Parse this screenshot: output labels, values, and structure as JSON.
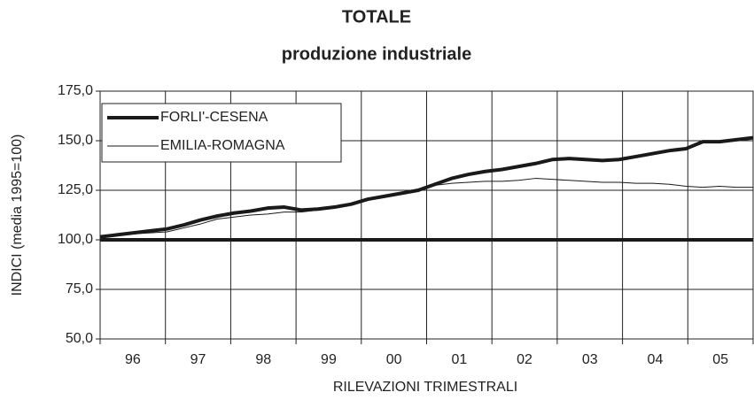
{
  "chart_data": {
    "type": "line",
    "title": "TOTALE",
    "subtitle": "produzione industriale",
    "x_label": "RILEVAZIONI TRIMESTRALI",
    "y_label": "INDICI (media 1995=100)",
    "categories": [
      null,
      "96",
      null,
      null,
      null,
      "97",
      null,
      null,
      null,
      "98",
      null,
      null,
      null,
      "99",
      null,
      null,
      null,
      "00",
      null,
      null,
      null,
      "01",
      null,
      null,
      null,
      "02",
      null,
      null,
      null,
      "03",
      null,
      null,
      null,
      "04",
      null,
      null,
      null,
      "05",
      null,
      null
    ],
    "series": [
      {
        "name": "FORLI'-CESENA",
        "color": "#1a1a1a",
        "width": 4,
        "values": [
          101.5,
          102.5,
          103.5,
          104.5,
          105.5,
          107.5,
          110,
          112,
          113.5,
          114.5,
          116,
          116.5,
          115,
          115.5,
          116.5,
          118,
          120.5,
          122,
          123.5,
          125,
          128,
          131,
          133,
          134.5,
          135.5,
          137,
          138.5,
          140.5,
          141,
          140.5,
          140,
          140.5,
          142,
          143.5,
          145,
          146,
          149.5,
          149.5,
          150.5,
          151.5
        ]
      },
      {
        "name": "EMILIA-ROMAGNA",
        "color": "#1a1a1a",
        "width": 1,
        "values": [
          101,
          102,
          103,
          103.5,
          104,
          106,
          108,
          110.5,
          111.5,
          112.5,
          113,
          114,
          114,
          115,
          116.5,
          118,
          120,
          121.5,
          123.5,
          125,
          127.5,
          128.5,
          129,
          129.5,
          129.5,
          130,
          131,
          130.5,
          130,
          129.5,
          129,
          129,
          128.5,
          128.5,
          128,
          127,
          126.5,
          127,
          126.5,
          126.5
        ]
      }
    ],
    "baseline": 100,
    "ylim": [
      50,
      175
    ],
    "yticks": [
      {
        "value": 50,
        "label": "50,0"
      },
      {
        "value": 75,
        "label": "75,0"
      },
      {
        "value": 100,
        "label": "100,0"
      },
      {
        "value": 125,
        "label": "125,0"
      },
      {
        "value": 150,
        "label": "150,0"
      },
      {
        "value": 175,
        "label": "175,0"
      }
    ],
    "grid": true,
    "legend": "top-left"
  }
}
